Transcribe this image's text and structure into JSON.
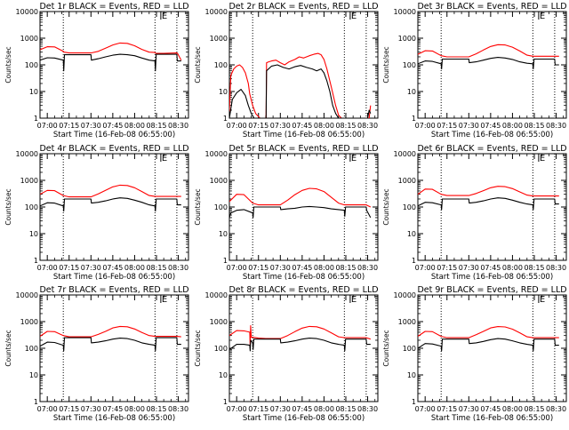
{
  "chart_data": {
    "type": "line",
    "panel_grid": "3x3",
    "colors": {
      "events": "#000000",
      "lld": "#ff0000",
      "axes": "#000000",
      "background": "#ffffff"
    },
    "legend_note": "BLACK = Events, RED = LLD",
    "xlabel": "Start Time (16-Feb-08 06:55:00)",
    "ylabel": "Counts/sec",
    "y_scale": "log",
    "y_ticks": [
      "1",
      "10",
      "100",
      "1000",
      "10000"
    ],
    "x_ticks": [
      "07:00",
      "07:15",
      "07:30",
      "07:45",
      "08:00",
      "08:15",
      "08:30"
    ],
    "x_units": "minutes after 07:00",
    "x_tick_values": [
      0,
      15,
      30,
      45,
      60,
      75,
      90
    ],
    "xlim": [
      -5,
      97
    ],
    "ylim": [
      1,
      10000
    ],
    "marker_label": "E",
    "marker_x": 78,
    "dotted_lines_x": [
      11,
      74,
      89
    ],
    "panels": [
      {
        "title": "Det 1r BLACK = Events, RED = LLD",
        "series": [
          {
            "name": "LLD",
            "color": "#ff0000",
            "x": [
              -5,
              0,
              5,
              11,
              11.5,
              15,
              30,
              35,
              40,
              45,
              50,
              55,
              60,
              65,
              70,
              74,
              74.5,
              80,
              89,
              89.5,
              92
            ],
            "y": [
              370,
              480,
              470,
              320,
              300,
              280,
              280,
              320,
              420,
              560,
              660,
              640,
              520,
              380,
              300,
              290,
              270,
              270,
              280,
              270,
              150
            ]
          },
          {
            "name": "Events",
            "color": "#000000",
            "x": [
              -5,
              0,
              5,
              11,
              11.3,
              11.8,
              30,
              30.3,
              35,
              40,
              45,
              50,
              55,
              60,
              65,
              70,
              74,
              74.3,
              74.8,
              89,
              89.3,
              92
            ],
            "y": [
              150,
              185,
              180,
              150,
              60,
              240,
              240,
              150,
              170,
              200,
              230,
              250,
              240,
              220,
              180,
              150,
              140,
              60,
              250,
              250,
              140,
              140
            ]
          }
        ]
      },
      {
        "title": "Det 2r BLACK = Events, RED = LLD",
        "series": [
          {
            "name": "LLD",
            "color": "#ff0000",
            "x": [
              -5,
              -4,
              -2,
              0,
              2,
              4,
              6,
              8,
              9,
              11,
              13,
              16,
              18,
              20,
              20.2,
              20.5,
              22,
              24,
              27,
              30,
              33,
              36,
              40,
              43,
              46,
              50,
              53,
              56,
              58,
              60,
              62,
              65,
              68,
              70,
              72,
              74,
              76,
              78,
              85,
              87,
              89,
              91,
              92
            ],
            "y": [
              1.8,
              40,
              70,
              90,
              100,
              80,
              50,
              20,
              8,
              3,
              1.5,
              1,
              1,
              1,
              1,
              120,
              130,
              140,
              150,
              120,
              100,
              130,
              160,
              200,
              180,
              220,
              250,
              270,
              240,
              160,
              70,
              15,
              3,
              1.3,
              1,
              1,
              1,
              1,
              1,
              1,
              1,
              1,
              3
            ]
          },
          {
            "name": "Events",
            "color": "#000000",
            "x": [
              -5,
              -3,
              0,
              3,
              6,
              8,
              10,
              12,
              14,
              16,
              18,
              20,
              20.2,
              20.5,
              24,
              28,
              32,
              36,
              40,
              44,
              48,
              52,
              55,
              58,
              60,
              62,
              64,
              66,
              68,
              70,
              72,
              74,
              90,
              91,
              92
            ],
            "y": [
              1,
              5,
              9,
              12,
              7,
              3,
              1.5,
              1,
              1,
              1,
              1,
              1,
              1,
              60,
              90,
              100,
              80,
              70,
              85,
              95,
              80,
              70,
              60,
              70,
              50,
              25,
              10,
              3,
              1.5,
              1,
              1,
              1,
              1,
              2,
              1.5
            ]
          }
        ]
      },
      {
        "title": "Det 3r BLACK = Events, RED = LLD",
        "series": [
          {
            "name": "LLD",
            "color": "#ff0000",
            "x": [
              -5,
              0,
              5,
              11,
              15,
              30,
              35,
              40,
              45,
              50,
              55,
              60,
              65,
              70,
              74,
              80,
              89,
              92
            ],
            "y": [
              250,
              340,
              330,
              220,
              200,
              200,
              260,
              360,
              490,
              570,
              560,
              460,
              330,
              230,
              210,
              210,
              210,
              210
            ]
          },
          {
            "name": "Events",
            "color": "#000000",
            "x": [
              -5,
              0,
              5,
              11,
              11.3,
              11.8,
              30,
              30.3,
              35,
              40,
              45,
              50,
              55,
              60,
              65,
              70,
              74,
              74.3,
              74.8,
              89,
              89.3,
              92
            ],
            "y": [
              110,
              140,
              135,
              110,
              70,
              165,
              165,
              120,
              130,
              150,
              175,
              190,
              180,
              160,
              130,
              115,
              110,
              70,
              165,
              165,
              100,
              100
            ]
          }
        ]
      },
      {
        "title": "Det 4r BLACK = Events, RED = LLD",
        "series": [
          {
            "name": "LLD",
            "color": "#ff0000",
            "x": [
              -5,
              0,
              5,
              11,
              15,
              30,
              35,
              40,
              45,
              50,
              55,
              60,
              65,
              70,
              74,
              80,
              89,
              92
            ],
            "y": [
              300,
              420,
              410,
              270,
              240,
              240,
              310,
              420,
              570,
              660,
              640,
              530,
              380,
              270,
              250,
              250,
              250,
              250
            ]
          },
          {
            "name": "Events",
            "color": "#000000",
            "x": [
              -5,
              0,
              5,
              11,
              11.3,
              11.8,
              30,
              30.3,
              35,
              40,
              45,
              50,
              55,
              60,
              65,
              70,
              74,
              74.3,
              74.8,
              89,
              89.3,
              92
            ],
            "y": [
              110,
              145,
              140,
              110,
              70,
              200,
              200,
              140,
              150,
              170,
              200,
              220,
              210,
              180,
              150,
              120,
              110,
              70,
              200,
              200,
              120,
              120
            ]
          }
        ]
      },
      {
        "title": "Det 5r BLACK = Events, RED = LLD",
        "series": [
          {
            "name": "LLD",
            "color": "#ff0000",
            "x": [
              -5,
              0,
              5,
              11,
              15,
              30,
              35,
              40,
              45,
              50,
              55,
              60,
              65,
              70,
              74,
              80,
              89,
              92
            ],
            "y": [
              160,
              300,
              290,
              140,
              120,
              120,
              180,
              290,
              420,
              500,
              480,
              380,
              230,
              140,
              120,
              120,
              120,
              100
            ]
          },
          {
            "name": "Events",
            "color": "#000000",
            "x": [
              -5,
              -4,
              0,
              5,
              11,
              11.3,
              11.8,
              30,
              30.3,
              35,
              40,
              45,
              50,
              55,
              60,
              65,
              70,
              74,
              74.3,
              74.8,
              89,
              89.3,
              92
            ],
            "y": [
              40,
              60,
              75,
              80,
              60,
              40,
              100,
              100,
              80,
              85,
              90,
              100,
              105,
              100,
              95,
              85,
              80,
              75,
              45,
              100,
              100,
              75,
              40
            ]
          }
        ]
      },
      {
        "title": "Det 6r BLACK = Events, RED = LLD",
        "series": [
          {
            "name": "LLD",
            "color": "#ff0000",
            "x": [
              -5,
              0,
              5,
              11,
              15,
              30,
              35,
              40,
              45,
              50,
              55,
              60,
              65,
              70,
              74,
              80,
              89,
              92
            ],
            "y": [
              300,
              470,
              460,
              300,
              270,
              270,
              320,
              410,
              530,
              600,
              580,
              490,
              370,
              280,
              260,
              260,
              260,
              260
            ]
          },
          {
            "name": "Events",
            "color": "#000000",
            "x": [
              -5,
              0,
              5,
              11,
              11.3,
              11.8,
              30,
              30.3,
              35,
              40,
              45,
              50,
              55,
              60,
              65,
              70,
              74,
              74.3,
              74.8,
              89,
              89.3,
              92
            ],
            "y": [
              110,
              150,
              145,
              120,
              80,
              200,
              200,
              140,
              150,
              170,
              200,
              220,
              210,
              180,
              150,
              130,
              120,
              80,
              200,
              200,
              130,
              130
            ]
          }
        ]
      },
      {
        "title": "Det 7r BLACK = Events, RED = LLD",
        "series": [
          {
            "name": "LLD",
            "color": "#ff0000",
            "x": [
              -5,
              0,
              5,
              11,
              15,
              30,
              35,
              40,
              45,
              50,
              55,
              60,
              65,
              70,
              74,
              80,
              89,
              92
            ],
            "y": [
              280,
              430,
              420,
              300,
              270,
              270,
              330,
              430,
              580,
              660,
              640,
              530,
              390,
              300,
              280,
              280,
              280,
              270
            ]
          },
          {
            "name": "Events",
            "color": "#000000",
            "x": [
              -5,
              0,
              5,
              11,
              11.3,
              11.8,
              30,
              30.3,
              35,
              40,
              45,
              50,
              55,
              60,
              65,
              70,
              74,
              74.3,
              74.8,
              89,
              89.3,
              92
            ],
            "y": [
              120,
              170,
              165,
              130,
              80,
              250,
              250,
              160,
              170,
              190,
              220,
              240,
              230,
              200,
              160,
              140,
              130,
              80,
              250,
              250,
              140,
              140
            ]
          }
        ]
      },
      {
        "title": "Det 8r BLACK = Events, RED = LLD",
        "series": [
          {
            "name": "LLD",
            "color": "#ff0000",
            "x": [
              -5,
              0,
              5,
              9,
              9.3,
              9.6,
              10,
              11,
              15,
              20,
              30,
              35,
              40,
              45,
              50,
              55,
              60,
              65,
              70,
              74,
              80,
              89,
              92
            ],
            "y": [
              300,
              460,
              450,
              400,
              120,
              700,
              260,
              260,
              240,
              230,
              230,
              300,
              420,
              570,
              660,
              640,
              530,
              380,
              270,
              250,
              250,
              250,
              220
            ]
          },
          {
            "name": "Events",
            "color": "#000000",
            "x": [
              -5,
              0,
              5,
              9,
              9.3,
              9.6,
              11,
              11.3,
              11.8,
              30,
              30.3,
              35,
              40,
              45,
              50,
              55,
              60,
              65,
              70,
              74,
              74.3,
              74.8,
              89,
              89.3,
              92
            ],
            "y": [
              90,
              140,
              140,
              130,
              80,
              200,
              160,
              90,
              220,
              220,
              160,
              170,
              190,
              220,
              240,
              230,
              200,
              160,
              140,
              130,
              80,
              220,
              220,
              140,
              140
            ]
          }
        ]
      },
      {
        "title": "Det 9r BLACK = Events, RED = LLD",
        "series": [
          {
            "name": "LLD",
            "color": "#ff0000",
            "x": [
              -5,
              0,
              5,
              11,
              15,
              30,
              35,
              40,
              45,
              50,
              55,
              60,
              65,
              70,
              74,
              80,
              89,
              92
            ],
            "y": [
              280,
              430,
              420,
              280,
              250,
              250,
              320,
              430,
              580,
              650,
              630,
              520,
              380,
              270,
              250,
              250,
              250,
              250
            ]
          },
          {
            "name": "Events",
            "color": "#000000",
            "x": [
              -5,
              0,
              5,
              11,
              11.3,
              11.8,
              30,
              30.3,
              35,
              40,
              45,
              50,
              55,
              60,
              65,
              70,
              74,
              74.3,
              74.8,
              89,
              89.3,
              92
            ],
            "y": [
              100,
              150,
              145,
              120,
              80,
              220,
              220,
              150,
              160,
              180,
              210,
              230,
              220,
              190,
              160,
              140,
              130,
              80,
              220,
              220,
              130,
              130
            ]
          }
        ]
      }
    ]
  }
}
